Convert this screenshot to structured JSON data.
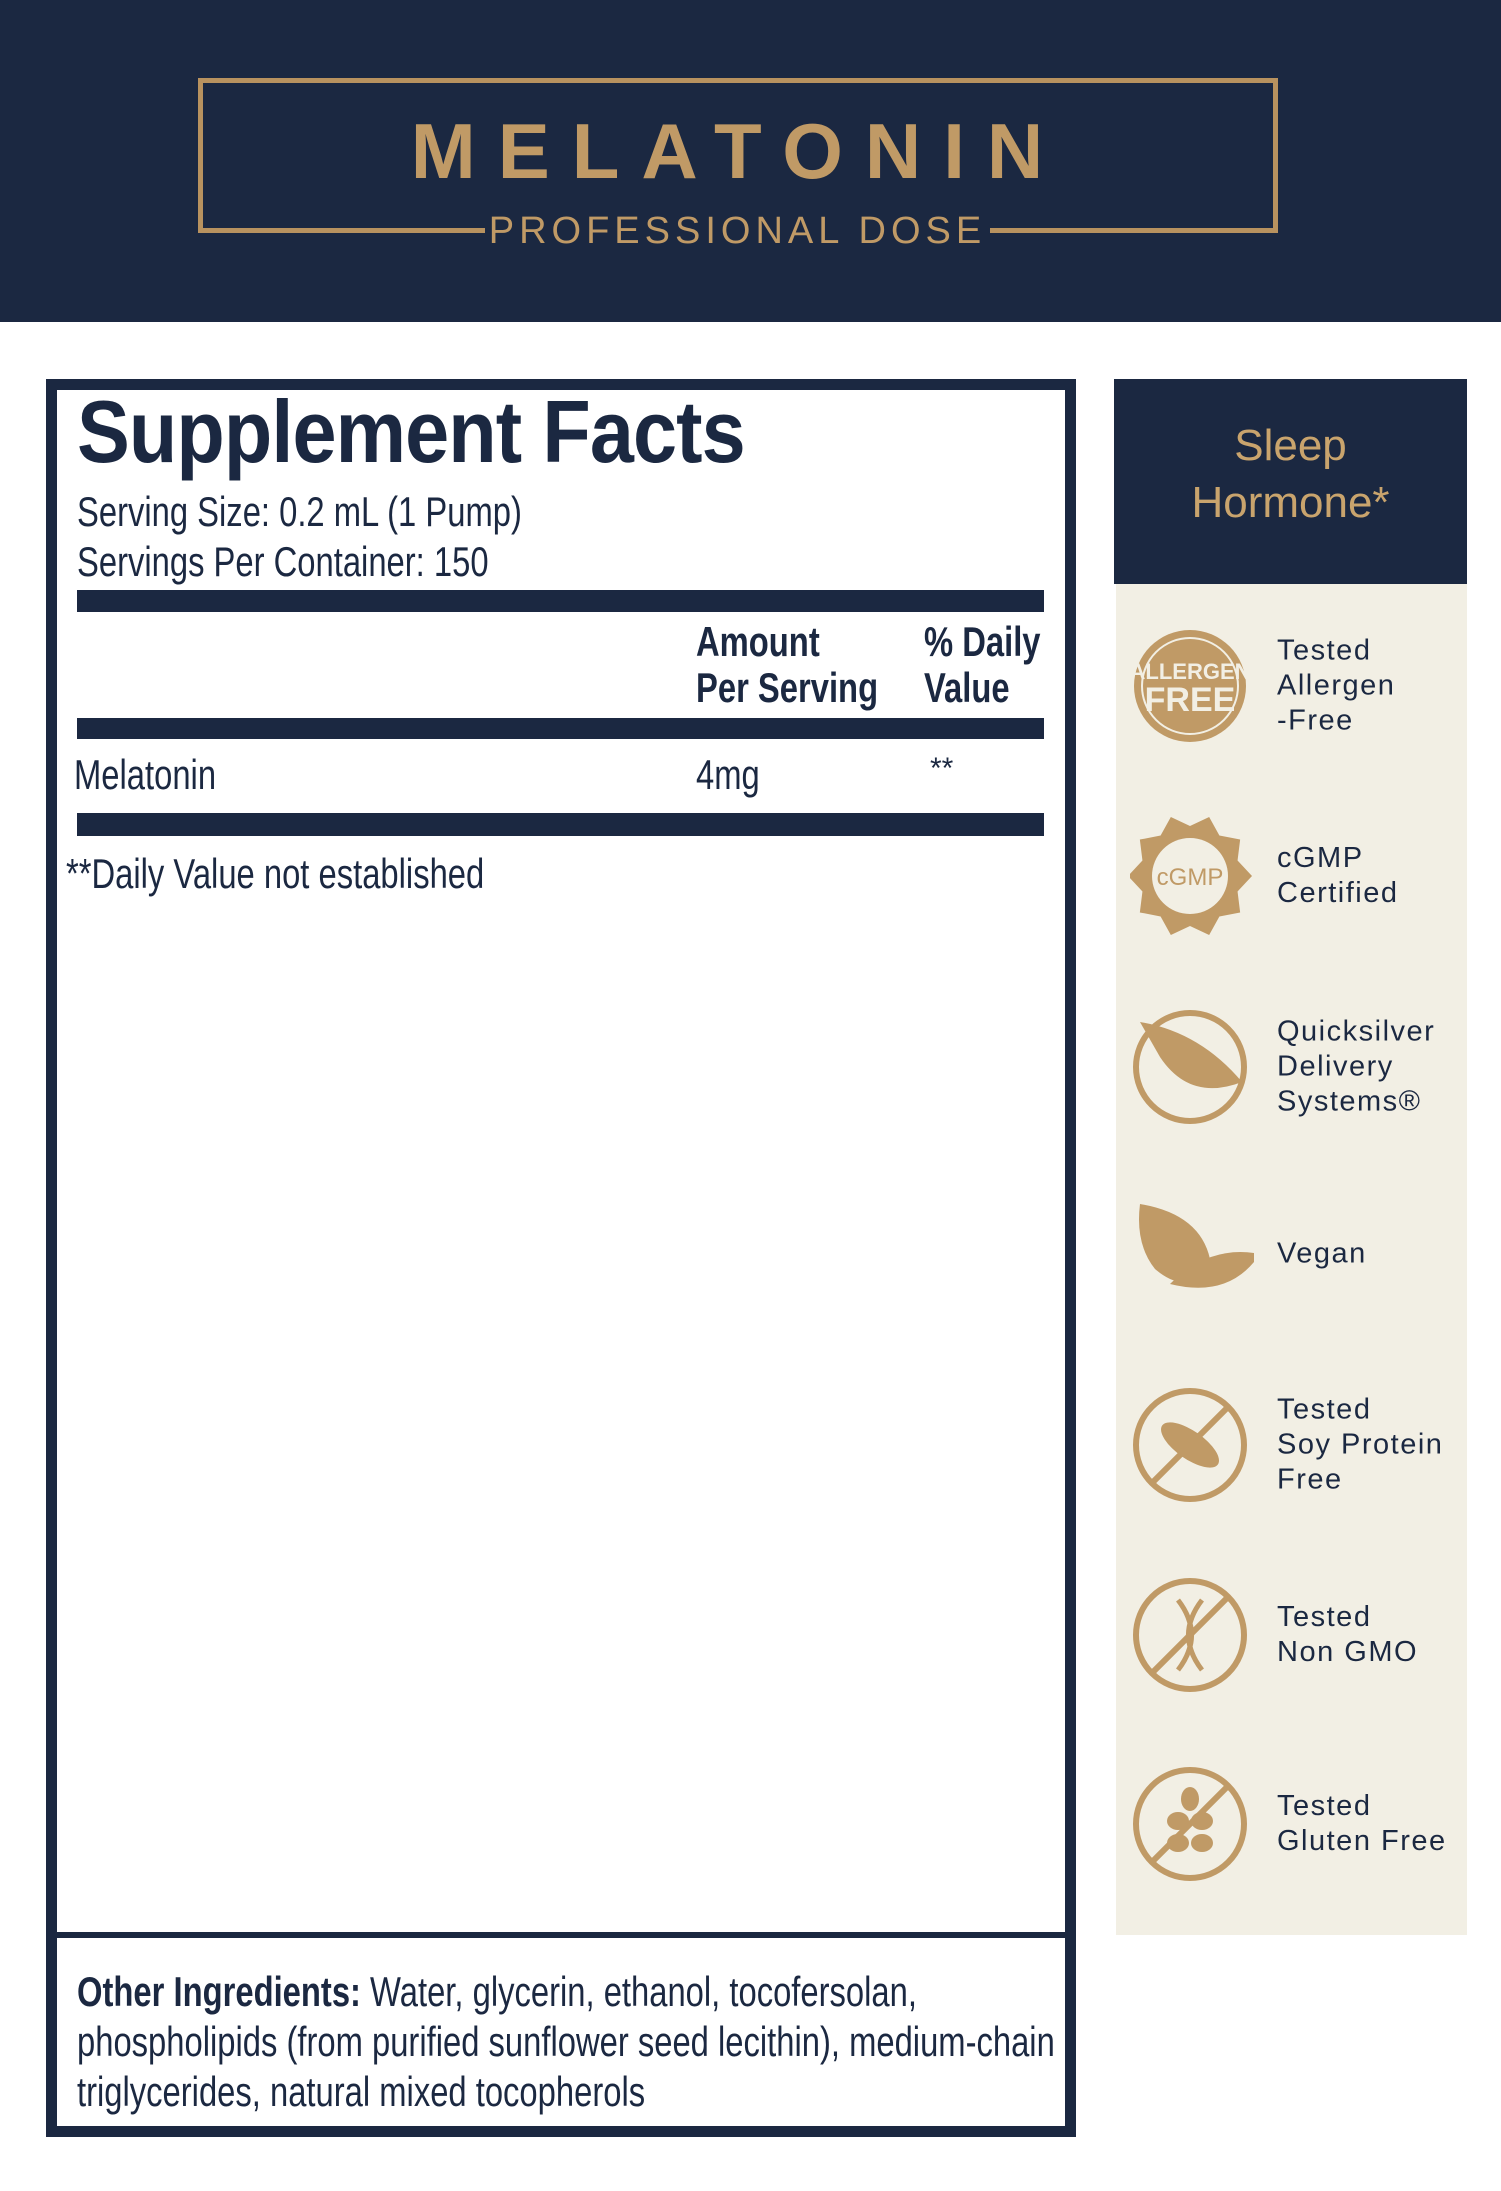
{
  "header": {
    "title": "MELATONIN",
    "subtitle": "PROFESSIONAL DOSE"
  },
  "facts": {
    "title": "Supplement Facts",
    "serving_size": "Serving Size: 0.2 mL (1 Pump)",
    "servings_per_container": "Servings Per Container: 150",
    "col_amount": [
      "Amount",
      "Per Serving"
    ],
    "col_dv": [
      "% Daily",
      "Value"
    ],
    "rows": [
      {
        "name": "Melatonin",
        "amount": "4mg",
        "dv": "**"
      }
    ],
    "footnote": "**Daily Value not established",
    "other_label": "Other Ingredients:",
    "other_lines": [
      " Water, glycerin, ethanol, tocofersolan,",
      "phospholipids (from purified sunflower seed lecithin), medium-chain",
      "triglycerides, natural mixed tocopherols"
    ]
  },
  "side": {
    "heading": [
      "Sleep",
      "Hormone*"
    ],
    "badges": [
      {
        "icon": "allergen-free-icon",
        "icon_text": [
          "ALLERGEN",
          "FREE"
        ],
        "label": [
          "Tested",
          "Allergen",
          "-Free"
        ]
      },
      {
        "icon": "cgmp-seal-icon",
        "icon_text": [
          "cGMP"
        ],
        "label": [
          "cGMP",
          "Certified"
        ]
      },
      {
        "icon": "quicksilver-leaf-icon",
        "label": [
          "Quicksilver",
          "Delivery",
          "Systems®"
        ]
      },
      {
        "icon": "vegan-leaf-icon",
        "label": [
          "Vegan"
        ]
      },
      {
        "icon": "no-soy-icon",
        "label": [
          "Tested",
          "Soy Protein",
          "Free"
        ]
      },
      {
        "icon": "no-gmo-icon",
        "label": [
          "Tested",
          "Non GMO"
        ]
      },
      {
        "icon": "no-gluten-icon",
        "label": [
          "Tested",
          "Gluten Free"
        ]
      }
    ]
  },
  "colors": {
    "navy": "#1b2841",
    "gold": "#c09a66",
    "beige": "#f2efe4"
  }
}
